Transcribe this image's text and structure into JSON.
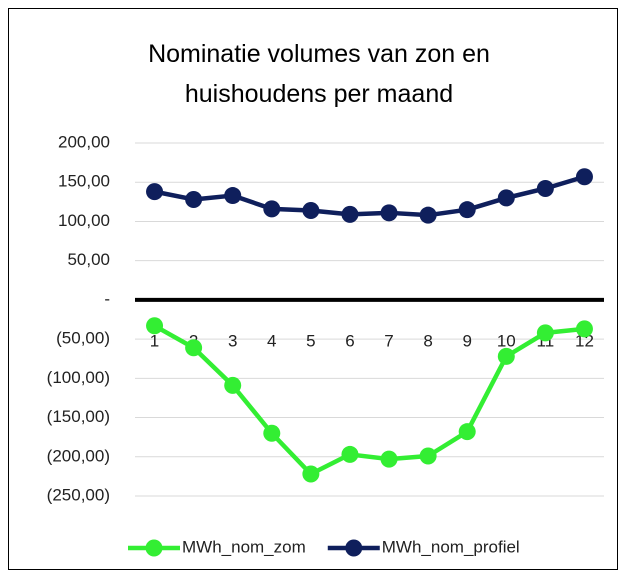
{
  "chart_data": {
    "type": "line",
    "title": "Nominatie volumes van zon en huishoudens per maand",
    "categories": [
      "1",
      "2",
      "3",
      "4",
      "5",
      "6",
      "7",
      "8",
      "9",
      "10",
      "11",
      "12"
    ],
    "series": [
      {
        "name": "MWh_nom_zom",
        "color": "#33ee33",
        "values": [
          -33,
          -61,
          -109,
          -170,
          -222,
          -197,
          -203,
          -199,
          -168,
          -72,
          -42,
          -37
        ]
      },
      {
        "name": "MWh_nom_profiel",
        "color": "#0f1f5c",
        "values": [
          138,
          128,
          133,
          116,
          114,
          109,
          111,
          108,
          115,
          130,
          142,
          157
        ]
      }
    ],
    "ylim": [
      -250,
      200
    ],
    "yticks": [
      {
        "value": -250,
        "label": "(250,00)"
      },
      {
        "value": -200,
        "label": "(200,00)"
      },
      {
        "value": -150,
        "label": "(150,00)"
      },
      {
        "value": -100,
        "label": "(100,00)"
      },
      {
        "value": -50,
        "label": "(50,00)"
      },
      {
        "value": 0,
        "label": "-"
      },
      {
        "value": 50,
        "label": "50,00"
      },
      {
        "value": 100,
        "label": "100,00"
      },
      {
        "value": 150,
        "label": "150,00"
      },
      {
        "value": 200,
        "label": "200,00"
      }
    ],
    "grid": true,
    "legend": "bottom"
  }
}
